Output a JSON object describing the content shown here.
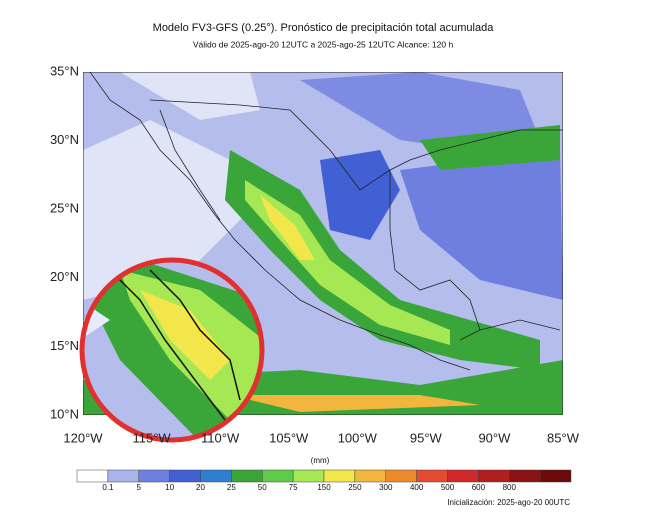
{
  "header": {
    "title": "Modelo FV3-GFS (0.25°). Pronóstico de precipitación total acumulada",
    "subtitle": "Válido de 2025-ago-20 12UTC a 2025-ago-25 12UTC   Alcance: 120 h"
  },
  "map": {
    "lat_labels": [
      "35°N",
      "30°N",
      "25°N",
      "20°N",
      "15°N",
      "10°N"
    ],
    "lon_labels": [
      "120°W",
      "115°W",
      "110°W",
      "105°W",
      "100°W",
      "95°W",
      "90°W",
      "85°W"
    ]
  },
  "colorbar": {
    "unit": "(mm)",
    "colors": [
      "#ffffff",
      "#a9b4ea",
      "#6f7fe0",
      "#4060d4",
      "#2f7fd0",
      "#3aa63a",
      "#5ccc4a",
      "#a6e854",
      "#f2e64a",
      "#f2b63e",
      "#ee8a2c",
      "#e44a30",
      "#d02828",
      "#b01e1e",
      "#8a1212",
      "#6a0a0a"
    ],
    "labels": [
      "0.1",
      "5",
      "10",
      "20",
      "25",
      "50",
      "75",
      "150",
      "250",
      "300",
      "400",
      "500",
      "600",
      "800"
    ]
  },
  "footer": {
    "init": "Inicialización: 2025-ago-20 00UTC"
  }
}
